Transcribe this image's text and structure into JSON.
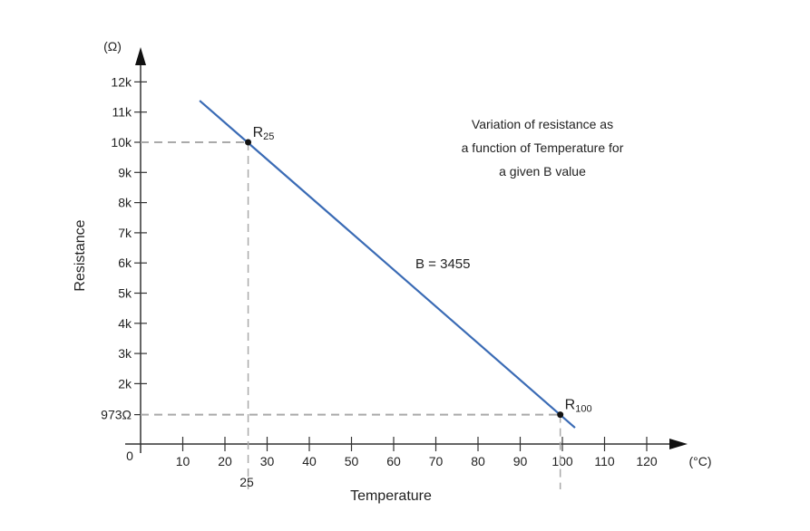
{
  "chart_data": {
    "type": "line",
    "title": "",
    "xlabel": "Temperature",
    "ylabel": "Resistance",
    "x_unit": "(°C)",
    "y_unit": "(Ω)",
    "xlim": [
      0,
      130
    ],
    "ylim": [
      0,
      12500
    ],
    "x_ticks": [
      10,
      20,
      30,
      40,
      50,
      60,
      70,
      80,
      90,
      100,
      110,
      120
    ],
    "x_tick_labels": [
      "10",
      "20",
      "30",
      "40",
      "50",
      "60",
      "70",
      "80",
      "90",
      "100",
      "110",
      "120"
    ],
    "y_ticks": [
      973,
      2000,
      3000,
      4000,
      5000,
      6000,
      7000,
      8000,
      9000,
      10000,
      11000,
      12000
    ],
    "y_tick_labels": [
      "973Ω",
      "2k",
      "3k",
      "4k",
      "5k",
      "6k",
      "7k",
      "8k",
      "9k",
      "10k",
      "11k",
      "12k"
    ],
    "origin_label": "0",
    "extra_x_label": "25",
    "series": [
      {
        "name": "B = 3455",
        "color": "#3a6bb5",
        "x": [
          14,
          103
        ],
        "y": [
          11380,
          540
        ]
      }
    ],
    "points": [
      {
        "label": "R",
        "sub": "25",
        "x": 25.5,
        "y": 10000
      },
      {
        "label": "R",
        "sub": "100",
        "x": 99.5,
        "y": 973
      }
    ],
    "annotations": {
      "description": [
        "Variation of resistance as",
        "a function of Temperature for",
        "a given B value"
      ],
      "b_value": "B = 3455"
    },
    "grid": false
  }
}
